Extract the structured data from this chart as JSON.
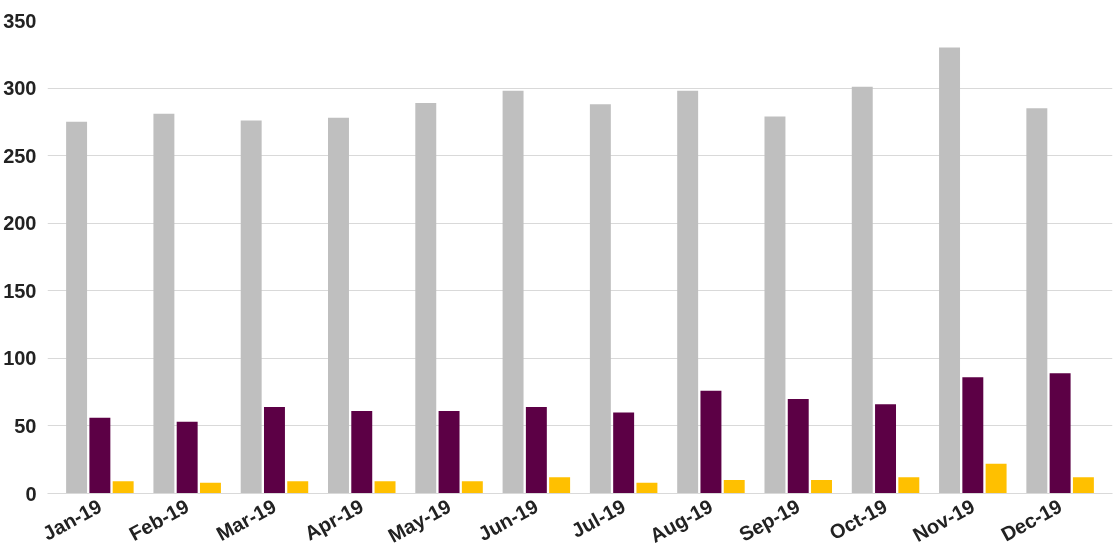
{
  "chart_data": {
    "type": "bar",
    "categories": [
      "Jan-19",
      "Feb-19",
      "Mar-19",
      "Apr-19",
      "May-19",
      "Jun-19",
      "Jul-19",
      "Aug-19",
      "Sep-19",
      "Oct-19",
      "Nov-19",
      "Dec-19"
    ],
    "series": [
      {
        "color": "#bfbfbf",
        "values": [
          275,
          281,
          276,
          278,
          289,
          298,
          288,
          298,
          279,
          301,
          330,
          285
        ]
      },
      {
        "color": "#5c0045",
        "values": [
          56,
          53,
          64,
          61,
          61,
          64,
          60,
          76,
          70,
          66,
          86,
          89
        ]
      },
      {
        "color": "#ffc000",
        "values": [
          9,
          8,
          9,
          9,
          9,
          12,
          8,
          10,
          10,
          12,
          22,
          12
        ]
      }
    ],
    "ylim": [
      0,
      350
    ],
    "yticks": [
      0,
      50,
      100,
      150,
      200,
      250,
      300,
      350
    ],
    "grid": "y"
  }
}
